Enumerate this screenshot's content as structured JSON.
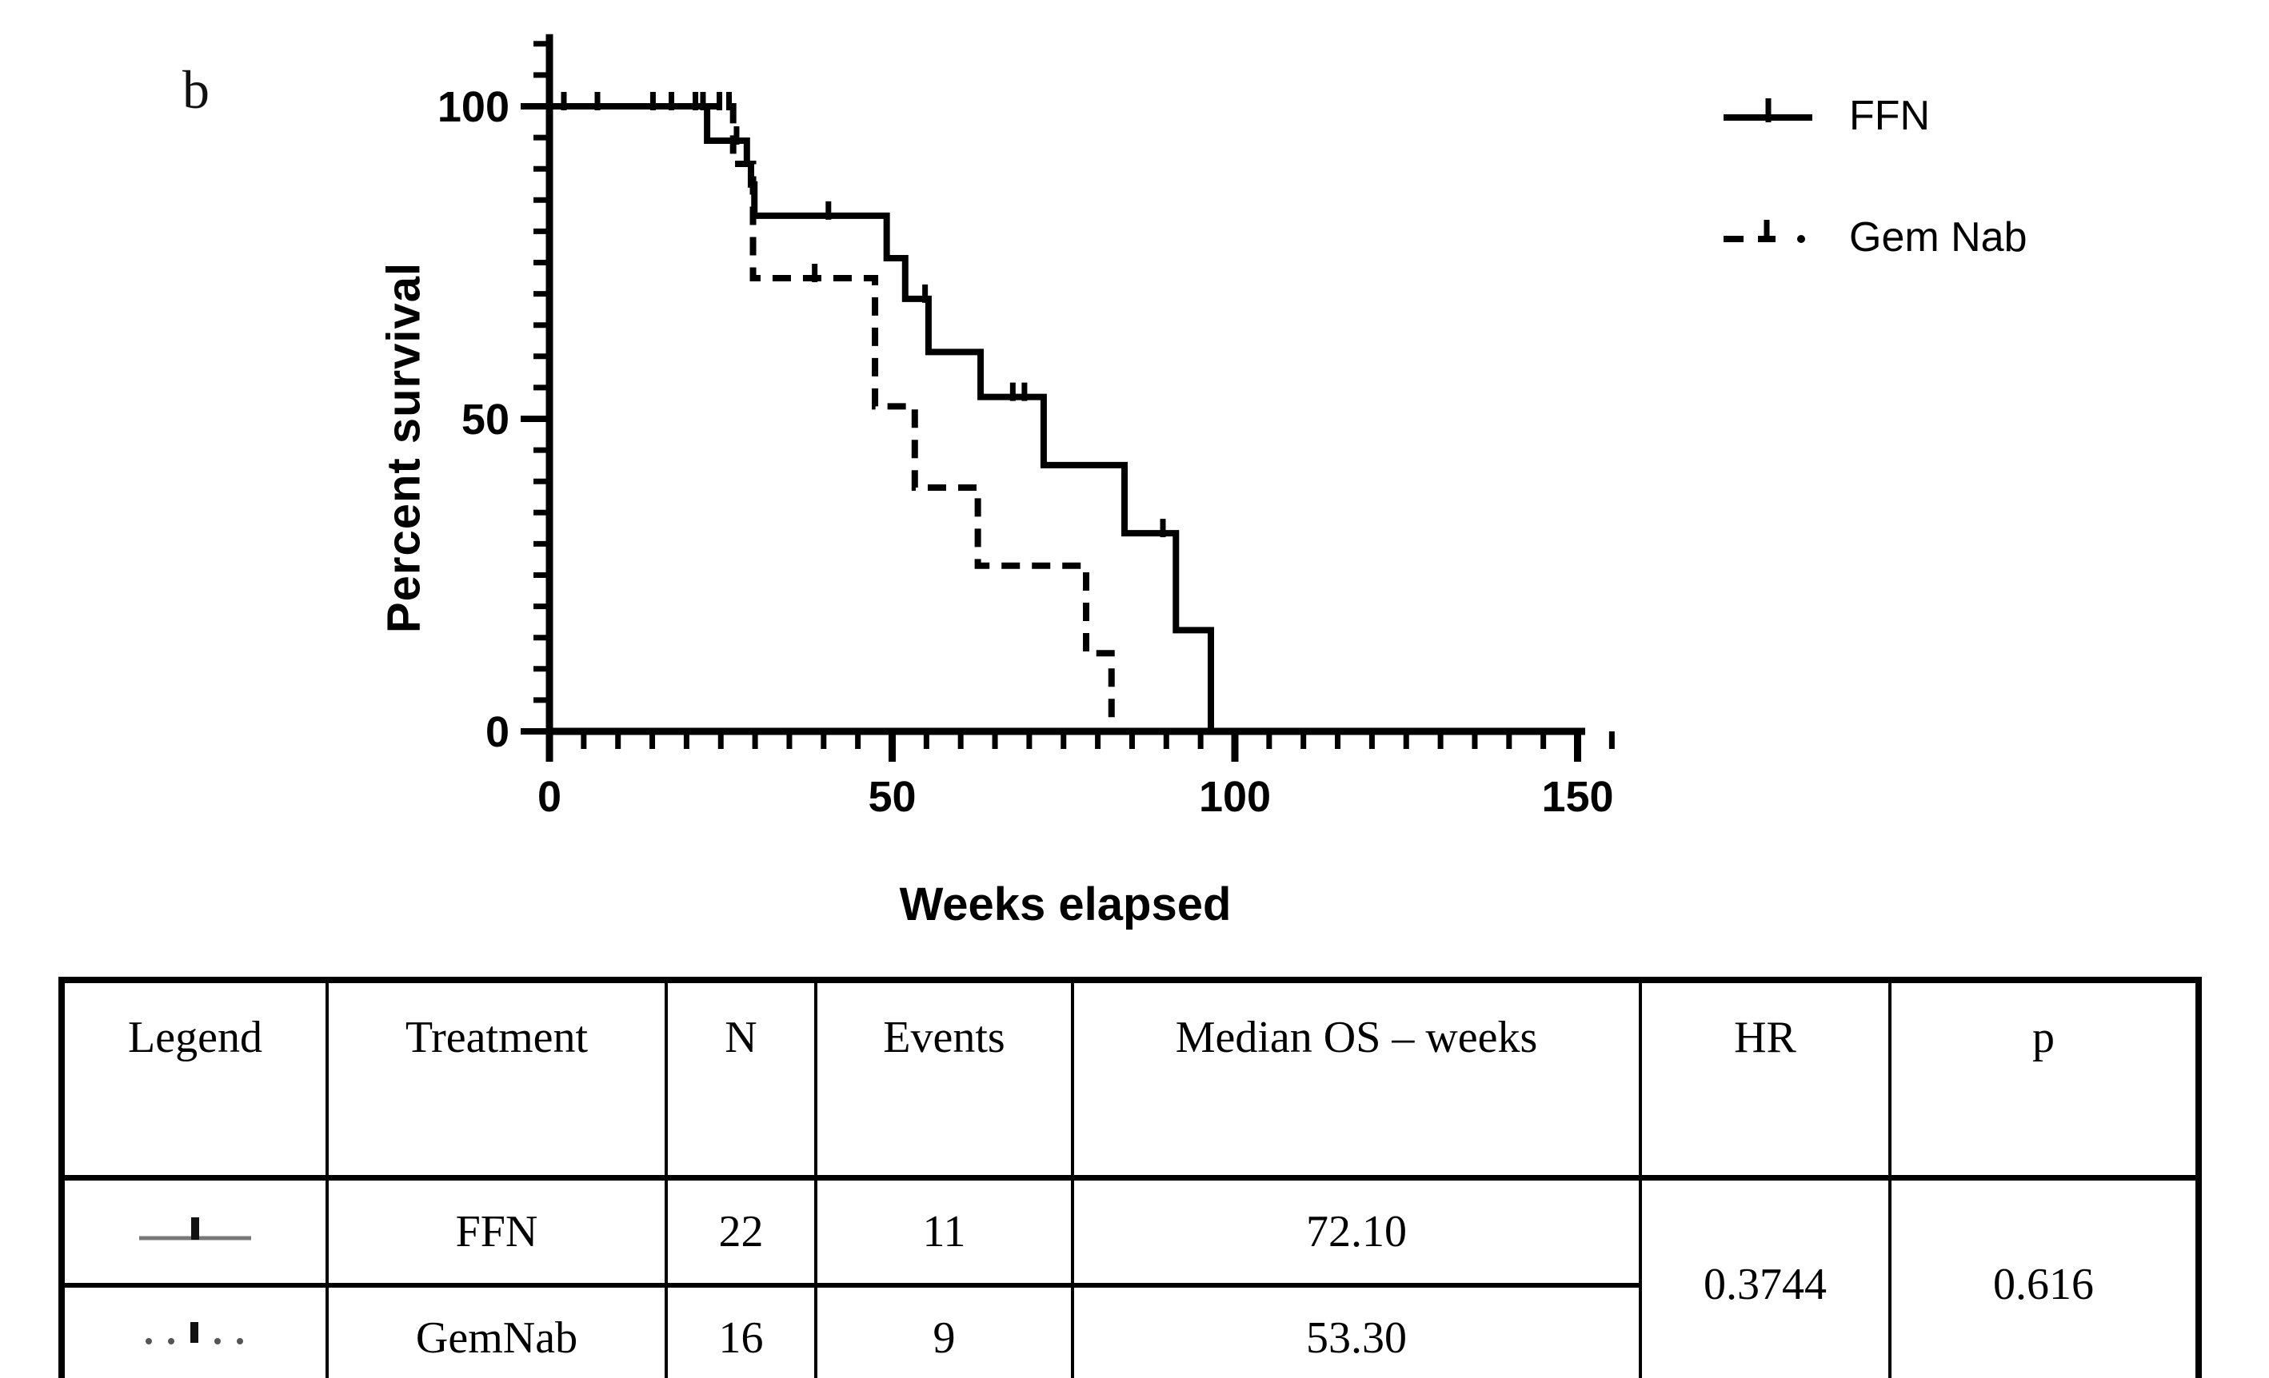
{
  "figure": {
    "panel_label": "b",
    "background_color": "#ffffff",
    "line_color": "#000000"
  },
  "chart_data": {
    "type": "line",
    "subtype": "kaplan_meier_step",
    "title": "",
    "xlabel": "Weeks elapsed",
    "ylabel": "Percent survival",
    "xlim": [
      0,
      155
    ],
    "ylim": [
      0,
      110
    ],
    "x_major_ticks": [
      0,
      50,
      100,
      150
    ],
    "x_minor_tick_step": 5,
    "y_major_ticks": [
      0,
      50,
      100
    ],
    "y_minor_tick_step": 5,
    "grid": false,
    "legend_position": "top-right",
    "series": [
      {
        "name": "FFN",
        "line_style": "solid",
        "color": "#000000",
        "steps_weeks_percent": [
          [
            0,
            100
          ],
          [
            23,
            94.5
          ],
          [
            28.8,
            90.8
          ],
          [
            29.4,
            87.5
          ],
          [
            29.9,
            82.5
          ],
          [
            49.2,
            75.7
          ],
          [
            51.9,
            69.2
          ],
          [
            55.3,
            60.7
          ],
          [
            62.9,
            53.5
          ],
          [
            72.1,
            42.6
          ],
          [
            83.9,
            31.7
          ],
          [
            91.4,
            16.2
          ],
          [
            96.5,
            0
          ]
        ],
        "censor_marks_weeks_percent": [
          [
            2.1,
            100
          ],
          [
            7,
            100
          ],
          [
            15.1,
            100
          ],
          [
            17.8,
            100
          ],
          [
            21.3,
            100
          ],
          [
            22.4,
            100
          ],
          [
            27.3,
            94.5
          ],
          [
            40.7,
            82.5
          ],
          [
            54.8,
            69.2
          ],
          [
            67.6,
            53.5
          ],
          [
            69.3,
            53.5
          ],
          [
            89.5,
            31.7
          ]
        ]
      },
      {
        "name": "Gem Nab",
        "line_style": "dashed",
        "color": "#000000",
        "steps_weeks_percent": [
          [
            0,
            100
          ],
          [
            26.8,
            90.8
          ],
          [
            29.7,
            72.5
          ],
          [
            47.5,
            52
          ],
          [
            53.3,
            39
          ],
          [
            62.5,
            26.5
          ],
          [
            78.3,
            12.5
          ],
          [
            82,
            0
          ]
        ],
        "censor_marks_weeks_percent": [
          [
            24.8,
            100
          ],
          [
            26.2,
            100
          ],
          [
            38.7,
            72.5
          ]
        ]
      }
    ]
  },
  "table": {
    "headers": [
      "Legend",
      "Treatment",
      "N",
      "Events",
      "Median OS – weeks",
      "HR",
      "p"
    ],
    "rows": [
      {
        "treatment": "FFN",
        "n": "22",
        "events": "11",
        "median_os_weeks": "72.10"
      },
      {
        "treatment": "GemNab",
        "n": "16",
        "events": "9",
        "median_os_weeks": "53.30"
      }
    ],
    "hr": "0.3744",
    "p": "0.616"
  }
}
